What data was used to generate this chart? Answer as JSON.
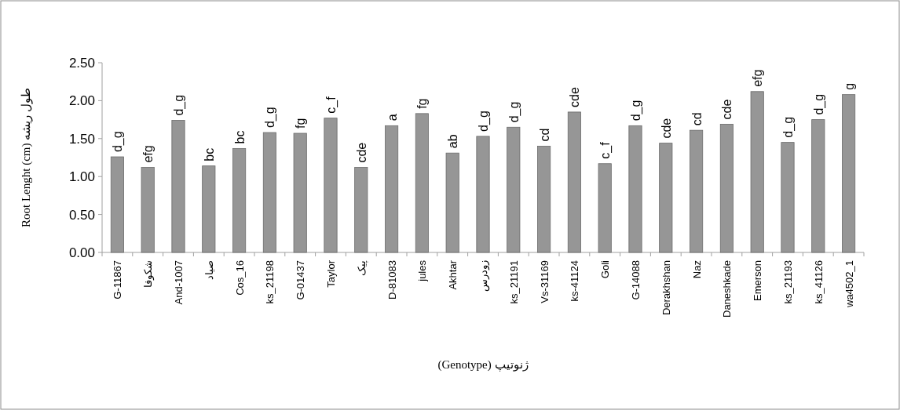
{
  "chart_data": {
    "type": "bar",
    "xlabel": "(Genotype) ژنوتیپ",
    "ylabel": "Root Lenght (cm) طول ریشه",
    "categories": [
      "G-11867",
      "شکوفا",
      "And-1007",
      "صیاد",
      "Cos_16",
      "ks_21198",
      "G-01437",
      "Taylor",
      "پیک",
      "D-81083",
      "jules",
      "Akhtar",
      "زودرس",
      "ks_21191",
      "Vs-31169",
      "ks-41124",
      "Goli",
      "G-14088",
      "Derakhshan",
      "Naz",
      "Daneshkade",
      "Emerson",
      "ks_21193",
      "ks_41126",
      "wa4502_1"
    ],
    "values": [
      1.26,
      1.12,
      1.74,
      1.14,
      1.37,
      1.58,
      1.57,
      1.77,
      1.12,
      1.67,
      1.83,
      1.31,
      1.53,
      1.65,
      1.4,
      1.85,
      1.17,
      1.67,
      1.44,
      1.61,
      1.69,
      2.12,
      1.45,
      1.75,
      2.08
    ],
    "value_labels": [
      "d_g",
      "efg",
      "d_g",
      "bc",
      "bc",
      "d_g",
      "fg",
      "c_f",
      "cde",
      "a",
      "fg",
      "ab",
      "d_g",
      "d_g",
      "cd",
      "cde",
      "c_f",
      "d_g",
      "cde",
      "cd",
      "cde",
      "efg",
      "d_g",
      "d_g",
      "g"
    ],
    "color": "#969696",
    "ylim": [
      0,
      2.5
    ],
    "yticks": [
      {
        "value": 0,
        "label": "0.00"
      },
      {
        "value": 0.5,
        "label": "0.50"
      },
      {
        "value": 1,
        "label": "1.00"
      },
      {
        "value": 1.5,
        "label": "1.50"
      },
      {
        "value": 2,
        "label": "2.00"
      },
      {
        "value": 2.5,
        "label": "2.50"
      }
    ],
    "grid": false
  }
}
